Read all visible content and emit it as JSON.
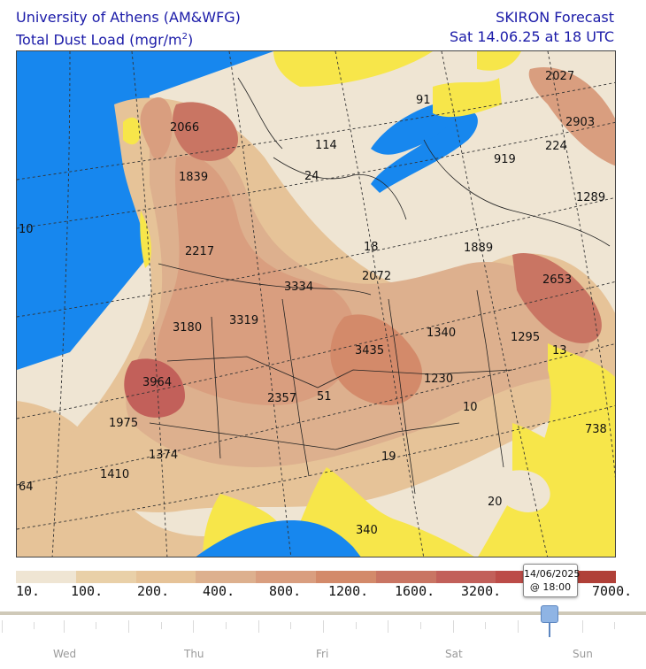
{
  "header": {
    "institution": "University of Athens (AM&WFG)",
    "variable": "Total Dust Load (mgr/m",
    "variable_exp": "2",
    "variable_close": ")",
    "model": "SKIRON Forecast",
    "valid_time": "Sat 14.06.25 at 18 UTC"
  },
  "map_labels": [
    {
      "text": "2066"
    },
    {
      "text": "1839"
    },
    {
      "text": "2217"
    },
    {
      "text": "3334"
    },
    {
      "text": "2072"
    },
    {
      "text": "3180"
    },
    {
      "text": "3319"
    },
    {
      "text": "3435"
    },
    {
      "text": "1340"
    },
    {
      "text": "1295"
    },
    {
      "text": "3964"
    },
    {
      "text": "2357"
    },
    {
      "text": "51"
    },
    {
      "text": "1230"
    },
    {
      "text": "1975"
    },
    {
      "text": "1374"
    },
    {
      "text": "1410"
    },
    {
      "text": "19"
    },
    {
      "text": "10"
    },
    {
      "text": "64"
    },
    {
      "text": "20"
    },
    {
      "text": "340"
    },
    {
      "text": "738"
    },
    {
      "text": "13"
    },
    {
      "text": "2653"
    },
    {
      "text": "1889"
    },
    {
      "text": "18"
    },
    {
      "text": "114"
    },
    {
      "text": "24"
    },
    {
      "text": "919"
    },
    {
      "text": "224"
    },
    {
      "text": "2903"
    },
    {
      "text": "2027"
    },
    {
      "text": "1289"
    },
    {
      "text": "91"
    },
    {
      "text": "10"
    }
  ],
  "colorbar": {
    "colors": [
      "#efe5d3",
      "#e9d0a8",
      "#e6c398",
      "#ddb08e",
      "#d99e7f",
      "#d38a6a",
      "#c97563",
      "#c2605a",
      "#bc4c48",
      "#b04038"
    ],
    "ticks": [
      "10.",
      "100.",
      "200.",
      "400.",
      "800.",
      "1200.",
      "1600.",
      "3200.",
      "7000."
    ]
  },
  "timeline": {
    "tooltip_date": "14/06/2025",
    "tooltip_time": "@ 18:00",
    "days": [
      "Wed",
      "Thu",
      "Fri",
      "Sat",
      "Sun"
    ],
    "selected": "14/06/2025 18:00"
  }
}
